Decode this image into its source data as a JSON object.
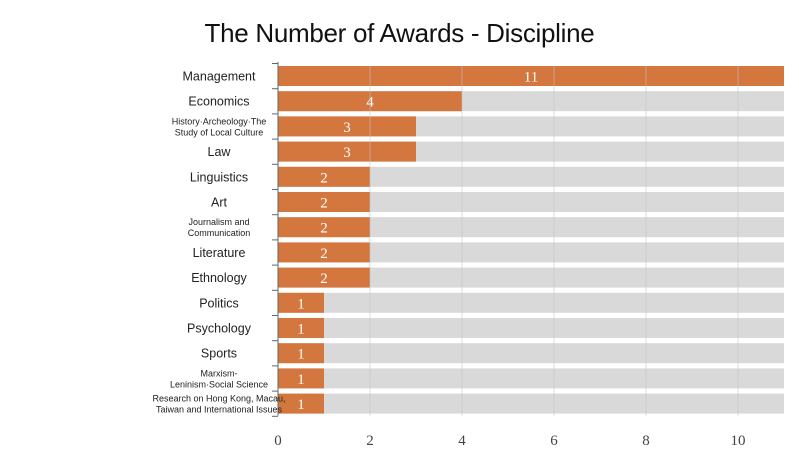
{
  "chart_data": {
    "type": "bar",
    "orientation": "horizontal",
    "title": "The Number of Awards - Discipline",
    "xlabel": "",
    "ylabel": "",
    "xlim": [
      0,
      11
    ],
    "x_ticks": [
      0,
      2,
      4,
      6,
      8,
      10
    ],
    "grid": true,
    "categories": [
      "Management",
      "Economics",
      "History·Archeology·The\nStudy of Local Culture",
      "Law",
      "Linguistics",
      "Art",
      "Journalism and\nCommunication",
      "Literature",
      "Ethnology",
      "Politics",
      "Psychology",
      "Sports",
      "Marxism-\nLeninism·Social Science",
      "Research on Hong Kong, Macau,\nTaiwan and International Issues"
    ],
    "values": [
      11,
      4,
      3,
      3,
      2,
      2,
      2,
      2,
      2,
      1,
      1,
      1,
      1,
      1
    ],
    "bar_color": "#d3773f",
    "track_color": "#d9d9d9"
  }
}
